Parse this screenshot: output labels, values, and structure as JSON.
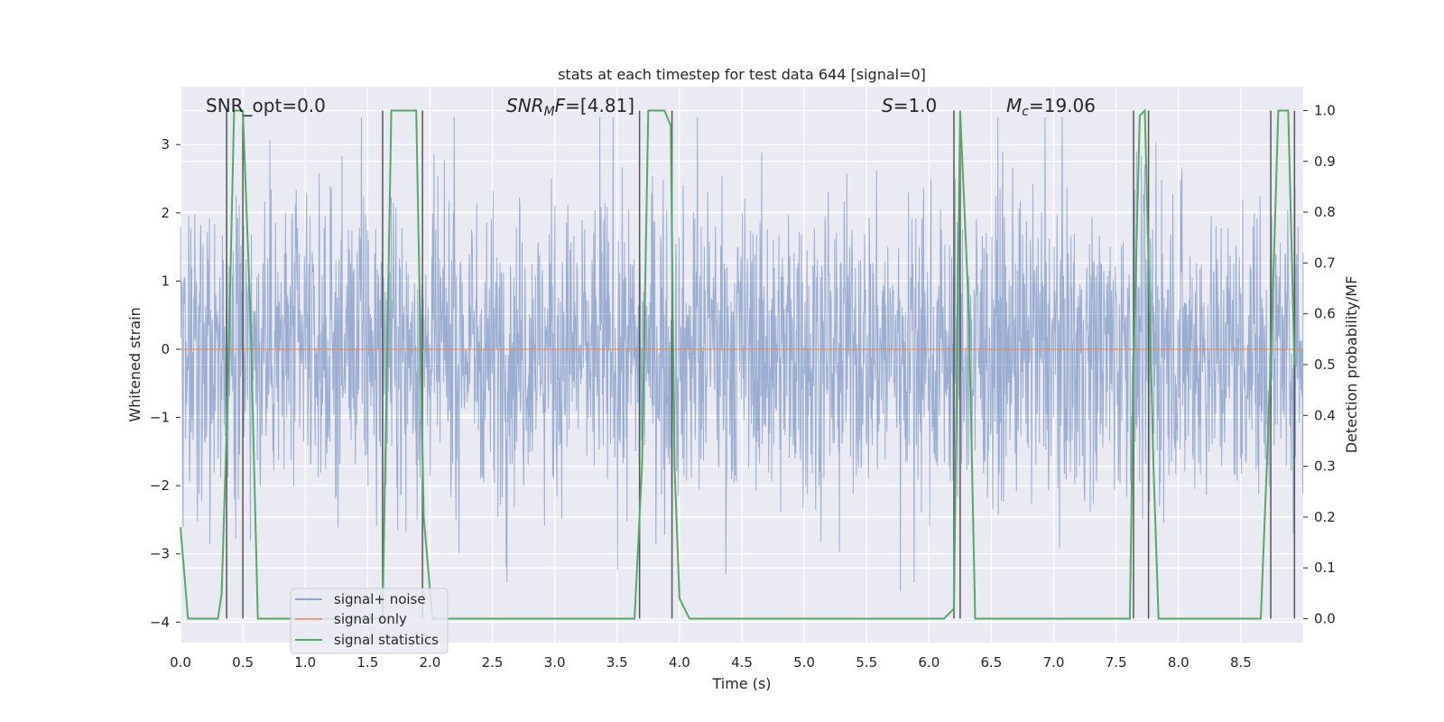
{
  "chart_data": {
    "type": "line",
    "title": "stats at each timestep for test data 644 [signal=0]",
    "xlabel": "Time (s)",
    "ylabel": "Whitened strain",
    "ylabel_right": "Detection probability/MF",
    "xlim": [
      0.0,
      9.0
    ],
    "ylim": [
      -4.3,
      3.85
    ],
    "ylim_right": [
      -0.047,
      1.047
    ],
    "x_ticks": [
      "0.0",
      "0.5",
      "1.0",
      "1.5",
      "2.0",
      "2.5",
      "3.0",
      "3.5",
      "4.0",
      "4.5",
      "5.0",
      "5.5",
      "6.0",
      "6.5",
      "7.0",
      "7.5",
      "8.0",
      "8.5"
    ],
    "x_tick_values": [
      0.0,
      0.5,
      1.0,
      1.5,
      2.0,
      2.5,
      3.0,
      3.5,
      4.0,
      4.5,
      5.0,
      5.5,
      6.0,
      6.5,
      7.0,
      7.5,
      8.0,
      8.5
    ],
    "y_ticks": [
      "−4",
      "−3",
      "−2",
      "−1",
      "0",
      "1",
      "2",
      "3"
    ],
    "y_tick_values": [
      -4,
      -3,
      -2,
      -1,
      0,
      1,
      2,
      3
    ],
    "y_right_ticks": [
      "0.0",
      "0.1",
      "0.2",
      "0.3",
      "0.4",
      "0.5",
      "0.6",
      "0.7",
      "0.8",
      "0.9",
      "1.0"
    ],
    "y_right_tick_values": [
      0.0,
      0.1,
      0.2,
      0.3,
      0.4,
      0.5,
      0.6,
      0.7,
      0.8,
      0.9,
      1.0
    ],
    "annotations": [
      {
        "text": "SNR_opt=0.0",
        "x": 0.2
      },
      {
        "text": "SNR_MF=[4.81]",
        "x": 2.6
      },
      {
        "text": "S=1.0",
        "x": 5.6
      },
      {
        "text": "M_c=19.06",
        "x": 6.6
      }
    ],
    "series": [
      {
        "name": "signal+ noise",
        "color": "#4c72b0",
        "axis": "left",
        "kind": "whitened noise, amplitude ~ ±4 (sampled densely over 0–9 s)"
      },
      {
        "name": "signal only",
        "color": "#dd8452",
        "axis": "left",
        "x": [
          0.0,
          9.0
        ],
        "values": [
          0.0,
          0.0
        ]
      },
      {
        "name": "signal statistics",
        "color": "#55a868",
        "axis": "right",
        "x": [
          0.0,
          0.06,
          0.3,
          0.33,
          0.38,
          0.43,
          0.5,
          0.56,
          0.62,
          1.62,
          1.69,
          1.89,
          1.95,
          2.02,
          3.64,
          3.7,
          3.75,
          3.88,
          3.93,
          3.96,
          4.0,
          4.08,
          6.12,
          6.2,
          6.25,
          6.32,
          6.37,
          7.61,
          7.64,
          7.69,
          7.73,
          7.8,
          7.84,
          8.66,
          8.74,
          8.8,
          8.88,
          8.93
        ],
        "values": [
          0.18,
          0.0,
          0.0,
          0.05,
          0.45,
          1.0,
          1.0,
          0.6,
          0.0,
          0.0,
          1.0,
          1.0,
          0.2,
          0.0,
          0.0,
          0.3,
          1.0,
          1.0,
          0.97,
          0.3,
          0.04,
          0.0,
          0.0,
          0.02,
          1.0,
          0.6,
          0.0,
          0.0,
          0.5,
          0.99,
          1.0,
          0.3,
          0.0,
          0.0,
          0.5,
          1.0,
          1.0,
          0.5
        ]
      }
    ],
    "vlines_x": [
      0.37,
      0.5,
      1.62,
      1.94,
      3.68,
      3.94,
      6.2,
      6.25,
      7.64,
      7.76,
      8.74,
      8.93
    ],
    "legend_location": "lower left",
    "grid": true
  }
}
